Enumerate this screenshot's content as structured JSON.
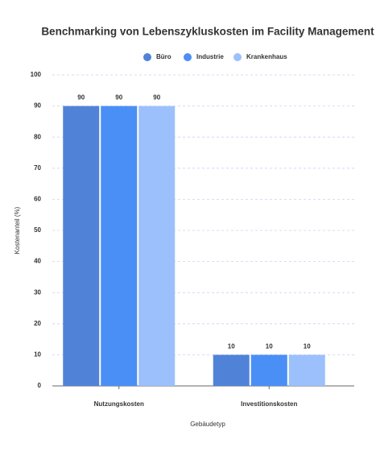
{
  "chart_data": {
    "type": "bar",
    "title": "Benchmarking von Lebenszykluskosten im Facility Management",
    "x_label": "Gebäudetyp",
    "y_label": "Kostenanteil (%)",
    "categories": [
      "Nutzungskosten",
      "Investitionskosten"
    ],
    "series": [
      {
        "name": "Büro",
        "color": "#5083d8",
        "values": [
          90,
          10
        ]
      },
      {
        "name": "Industrie",
        "color": "#4a8ff5",
        "values": [
          90,
          10
        ]
      },
      {
        "name": "Krankenhaus",
        "color": "#9cc0fb",
        "values": [
          90,
          10
        ]
      }
    ],
    "ylim": [
      0,
      100
    ],
    "yticks": [
      0,
      10,
      20,
      30,
      40,
      50,
      60,
      70,
      80,
      90,
      100
    ],
    "grid": true
  }
}
